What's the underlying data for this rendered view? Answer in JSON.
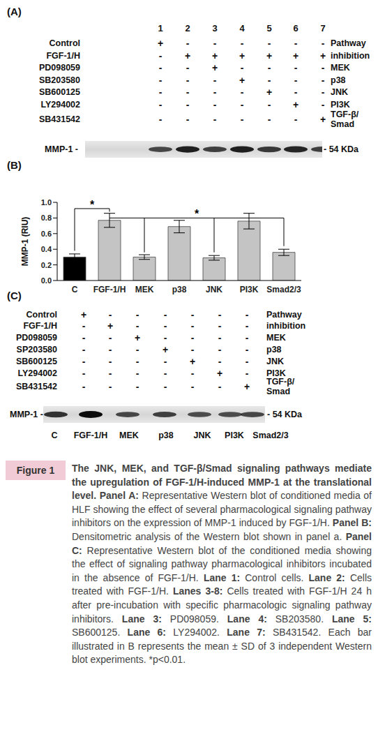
{
  "chart_data": {
    "type": "bar",
    "panel_label": "(B)",
    "y_label": "MMP-1 (RIU)",
    "categories": [
      "C",
      "FGF-1/H",
      "MEK",
      "p38",
      "JNK",
      "PI3K",
      "Smad2/3"
    ],
    "values": [
      0.3,
      0.77,
      0.3,
      0.69,
      0.29,
      0.76,
      0.36
    ],
    "error": [
      0.04,
      0.09,
      0.03,
      0.08,
      0.03,
      0.1,
      0.04
    ],
    "colors": [
      "#000000",
      "#c4c4c4",
      "#c4c4c4",
      "#c4c4c4",
      "#c4c4c4",
      "#c4c4c4",
      "#c4c4c4"
    ],
    "ylim": [
      0,
      1.0
    ],
    "yticks": [
      {
        "value": 0,
        "label": "0.0"
      },
      {
        "value": 0.2,
        "label": "0.2"
      },
      {
        "value": 0.4,
        "label": "0.4"
      },
      {
        "value": 0.6,
        "label": "0.6"
      },
      {
        "value": 0.8,
        "label": "0.8"
      },
      {
        "value": 1.0,
        "label": "1.0"
      }
    ],
    "grid": false,
    "annotations": [
      {
        "text": "*",
        "y": 0.92,
        "from": "C",
        "to": "FGF-1/H",
        "legs": [
          {
            "x": "C",
            "y": 0.38
          },
          {
            "x": "FGF-1/H",
            "y": 0.88
          }
        ]
      },
      {
        "text": "*",
        "y": 0.8,
        "from": "FGF-1/H",
        "to": "Smad2/3",
        "legs": [
          {
            "x": "MEK",
            "y": 0.36
          },
          {
            "x": "JNK",
            "y": 0.36
          },
          {
            "x": "Smad2/3",
            "y": 0.44
          }
        ]
      }
    ]
  },
  "panel_a": {
    "panel_label": "(A)",
    "lanes": [
      1,
      2,
      3,
      4,
      5,
      6,
      7
    ],
    "rows": [
      {
        "label": "Control",
        "marks": [
          "+",
          "-",
          "-",
          "-",
          "-",
          "-",
          "-"
        ],
        "pathway": [
          "Pathway"
        ]
      },
      {
        "label": "FGF-1/H",
        "marks": [
          "-",
          "+",
          "+",
          "+",
          "+",
          "+",
          "+"
        ],
        "pathway": [
          "inhibition"
        ]
      },
      {
        "label": "PD098059",
        "marks": [
          "-",
          "-",
          "+",
          "-",
          "-",
          "-",
          "-"
        ],
        "pathway": [
          "MEK"
        ]
      },
      {
        "label": "SB203580",
        "marks": [
          "-",
          "-",
          "-",
          "+",
          "-",
          "-",
          "-"
        ],
        "pathway": [
          "p38"
        ]
      },
      {
        "label": "SB600125",
        "marks": [
          "-",
          "-",
          "-",
          "-",
          "+",
          "-",
          "-"
        ],
        "pathway": [
          "JNK"
        ]
      },
      {
        "label": "LY294002",
        "marks": [
          "-",
          "-",
          "-",
          "-",
          "-",
          "+",
          "-"
        ],
        "pathway": [
          "PI3K"
        ]
      },
      {
        "label": "SB431542",
        "marks": [
          "-",
          "-",
          "-",
          "-",
          "-",
          "-",
          "+"
        ],
        "pathway": [
          "TGF-β/",
          "Smad"
        ]
      }
    ],
    "blot_label": "MMP-1 -",
    "size_label": "- 54 KDa",
    "band_intensity": [
      0.55,
      0.85,
      0.6,
      0.85,
      0.65,
      0.8,
      0.6
    ]
  },
  "panel_c": {
    "panel_label": "(C)",
    "rows": [
      {
        "label": "Control",
        "marks": [
          "+",
          "-",
          "-",
          "-",
          "-",
          "-",
          "-"
        ],
        "pathway": [
          "Pathway"
        ]
      },
      {
        "label": "FGF-1/H",
        "marks": [
          "-",
          "+",
          "-",
          "-",
          "-",
          "-",
          "-"
        ],
        "pathway": [
          "inhibition"
        ]
      },
      {
        "label": "PD098059",
        "marks": [
          "-",
          "-",
          "+",
          "-",
          "-",
          "-",
          "-"
        ],
        "pathway": [
          "MEK"
        ]
      },
      {
        "label": "SP203580",
        "marks": [
          "-",
          "-",
          "-",
          "+",
          "-",
          "-",
          "-"
        ],
        "pathway": [
          "p38"
        ]
      },
      {
        "label": "SB600125",
        "marks": [
          "-",
          "-",
          "-",
          "-",
          "+",
          "-",
          "-"
        ],
        "pathway": [
          "JNK"
        ]
      },
      {
        "label": "LY294002",
        "marks": [
          "-",
          "-",
          "-",
          "-",
          "-",
          "+",
          "-"
        ],
        "pathway": [
          "PI3K"
        ]
      },
      {
        "label": "SB431542",
        "marks": [
          "-",
          "-",
          "-",
          "-",
          "-",
          "-",
          "+"
        ],
        "pathway": [
          "TGF-β/",
          "Smad"
        ]
      }
    ],
    "blot_label": "MMP-1 -",
    "size_label": "- 54 KDa",
    "band_intensity": [
      0.7,
      1.0,
      0.55,
      0.6,
      0.5,
      0.5,
      0.55
    ],
    "lane_labels": [
      "C",
      "FGF-1/H",
      "MEK",
      "p38",
      "JNK",
      "PI3K",
      "Smad2/3"
    ]
  },
  "caption": {
    "tag": "Figure 1",
    "segments": [
      {
        "text": "The JNK, MEK, and TGF-β/Smad signaling pathways mediate the upregulation of FGF-1/H-induced MMP-1 at the translational level.",
        "bold": true
      },
      {
        "text": " ",
        "bold": false
      },
      {
        "text": "Panel A:",
        "bold": true
      },
      {
        "text": " Representative Western blot of conditioned media of HLF showing the effect of several pharmacological signaling pathway inhibitors on the expression of MMP-1 induced by FGF-1/H. ",
        "bold": false
      },
      {
        "text": "Panel B:",
        "bold": true
      },
      {
        "text": " Densitometric analysis of the Western blot shown in panel a. ",
        "bold": false
      },
      {
        "text": "Panel C:",
        "bold": true
      },
      {
        "text": " Representative Western blot of the conditioned media showing the effect of signaling pathway pharmacological inhibitors incubated in the absence of FGF-1/H. ",
        "bold": false
      },
      {
        "text": "Lane 1:",
        "bold": true
      },
      {
        "text": " Control cells. ",
        "bold": false
      },
      {
        "text": "Lane 2:",
        "bold": true
      },
      {
        "text": " Cells treated with FGF-1/H. ",
        "bold": false
      },
      {
        "text": "Lanes 3-8:",
        "bold": true
      },
      {
        "text": " Cells treated with FGF-1/H 24 h after pre-incubation with specific pharmacologic signaling pathway inhibitors. ",
        "bold": false
      },
      {
        "text": "Lane 3:",
        "bold": true
      },
      {
        "text": " PD098059. ",
        "bold": false
      },
      {
        "text": "Lane 4:",
        "bold": true
      },
      {
        "text": " SB203580. ",
        "bold": false
      },
      {
        "text": "Lane 5:",
        "bold": true
      },
      {
        "text": " SB600125. ",
        "bold": false
      },
      {
        "text": "Lane 6:",
        "bold": true
      },
      {
        "text": " LY294002. ",
        "bold": false
      },
      {
        "text": "Lane 7:",
        "bold": true
      },
      {
        "text": " SB431542. ",
        "bold": false
      },
      {
        "text": "Each bar illustrated in B represents the mean ± SD of 3 independent Western blot experiments. *p<0.01.",
        "bold": false
      }
    ]
  }
}
